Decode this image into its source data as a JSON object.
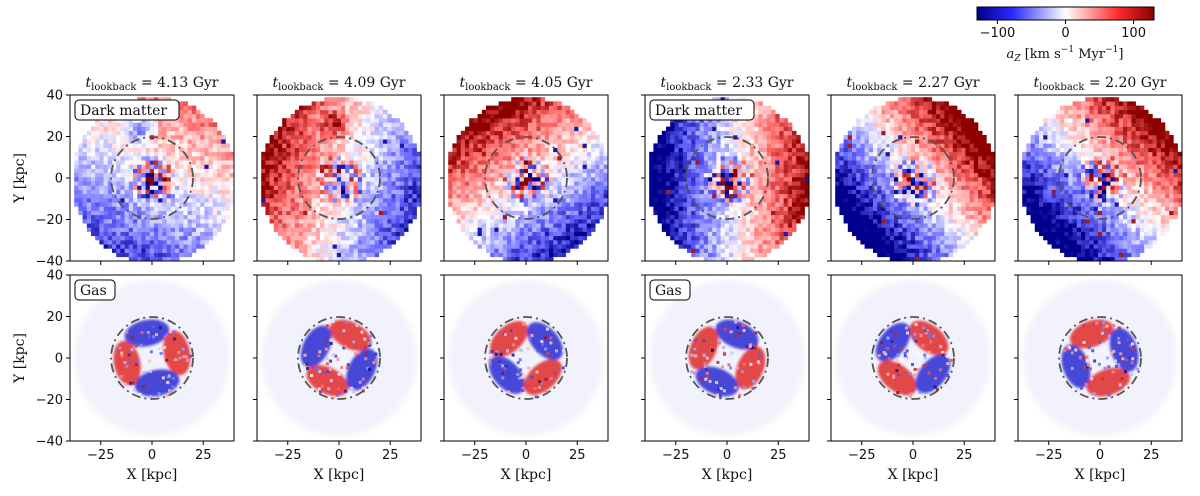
{
  "chart_data": {
    "type": "heatmap",
    "description_panels": "2 rows x 6 columns of face-on maps of vertical acceleration",
    "colorbar": {
      "label_main": "a",
      "label_sub": "Z",
      "label_units": " [km s",
      "label_exp1": "−1",
      "label_mid": " Myr",
      "label_exp2": "−1",
      "label_end": "]",
      "range": [
        -130,
        130
      ],
      "ticks": [
        "−100",
        "0",
        "100"
      ],
      "tick_values": [
        -100,
        0,
        100
      ],
      "colors": {
        "negative": "#00008b",
        "zero": "#ffffff",
        "positive": "#8b0000"
      }
    },
    "xlabel": "X [kpc]",
    "ylabel": "Y [kpc]",
    "xlim": [
      -40,
      40
    ],
    "ylim": [
      -40,
      40
    ],
    "xticks": [
      "−25",
      "0",
      "25"
    ],
    "xtick_values": [
      -25,
      0,
      25
    ],
    "yticks": [
      "40",
      "20",
      "0",
      "−20",
      "−40"
    ],
    "ytick_values": [
      40,
      20,
      0,
      -20,
      -40
    ],
    "circle_radius_kpc": 20,
    "title_prefix": "t",
    "title_sub": "lookback",
    "columns": [
      {
        "title_value": " = 4.13 Gyr",
        "tlookback_gyr": 4.13
      },
      {
        "title_value": " = 4.09 Gyr",
        "tlookback_gyr": 4.09
      },
      {
        "title_value": " = 4.05 Gyr",
        "tlookback_gyr": 4.05
      },
      {
        "title_value": " = 2.33 Gyr",
        "tlookback_gyr": 2.33
      },
      {
        "title_value": " = 2.27 Gyr",
        "tlookback_gyr": 2.27
      },
      {
        "title_value": " = 2.20 Gyr",
        "tlookback_gyr": 2.2
      }
    ],
    "rows": [
      {
        "component": "dark matter",
        "label": "Dark matter",
        "label_columns": [
          0,
          3
        ]
      },
      {
        "component": "gas",
        "label": "Gas",
        "label_columns": [
          0,
          3
        ]
      }
    ]
  }
}
